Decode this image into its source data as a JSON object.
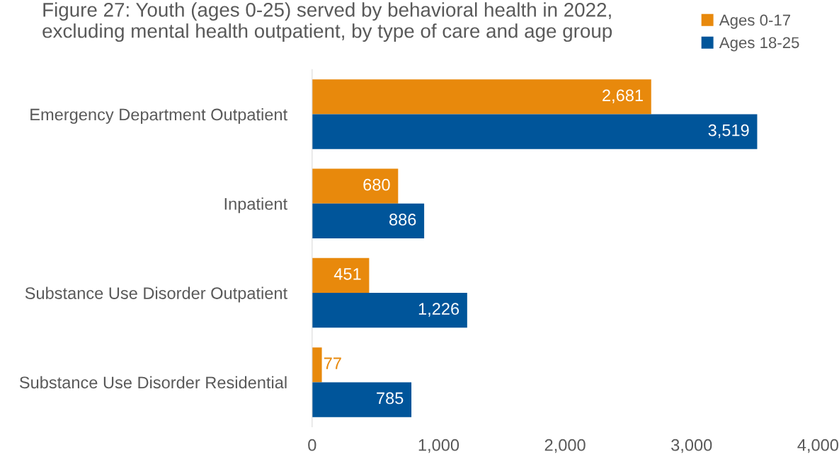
{
  "chart_data": {
    "type": "bar",
    "orientation": "horizontal",
    "title": "Figure 27: Youth (ages 0-25) served by behavioral health in 2022,\nexcluding mental health outpatient, by type of care and age group",
    "categories": [
      "Emergency Department Outpatient",
      "Inpatient",
      "Substance Use Disorder Outpatient",
      "Substance Use Disorder Residential"
    ],
    "series": [
      {
        "name": "Ages 0-17",
        "color": "#e8890c",
        "values": [
          2681,
          680,
          451,
          77
        ],
        "value_labels": [
          "2,681",
          "680",
          "451",
          "77"
        ]
      },
      {
        "name": "Ages 18-25",
        "color": "#00559a",
        "values": [
          3519,
          886,
          1226,
          785
        ],
        "value_labels": [
          "3,519",
          "886",
          "1,226",
          "785"
        ]
      }
    ],
    "xlim": [
      0,
      4000
    ],
    "xticks": [
      {
        "value": 0,
        "label": "0"
      },
      {
        "value": 1000,
        "label": "1,000"
      },
      {
        "value": 2000,
        "label": "2,000"
      },
      {
        "value": 3000,
        "label": "3,000"
      },
      {
        "value": 4000,
        "label": "4,000"
      }
    ],
    "grid": false,
    "legend": "top right"
  }
}
